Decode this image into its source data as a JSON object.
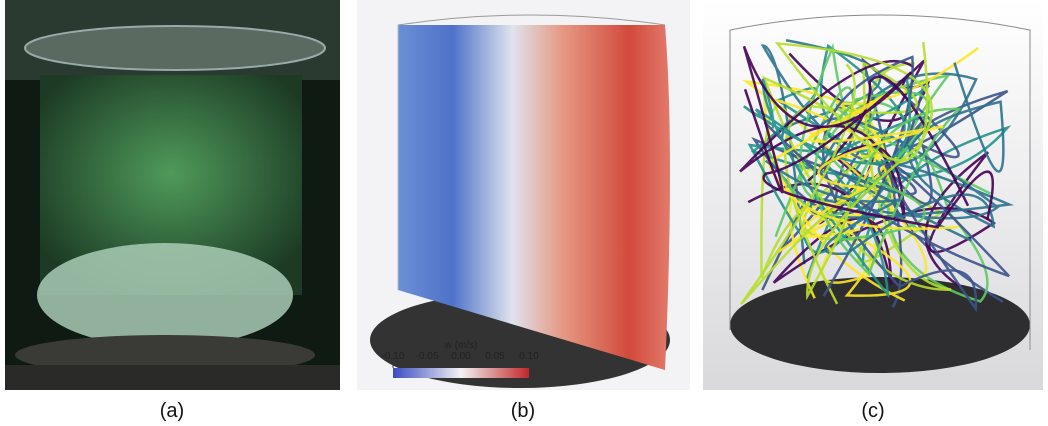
{
  "panels": [
    {
      "label": "(a)"
    },
    {
      "label": "(b)"
    },
    {
      "label": "(c)"
    }
  ],
  "colorbar": {
    "title": "w (m/s)",
    "lim": [
      -0.1,
      0.1
    ],
    "ticks": [
      {
        "value": -0.1,
        "label": "-0.10"
      },
      -0.05,
      {
        "value": 0,
        "label": "0.00"
      },
      0.05,
      {
        "value": 0.1,
        "label": "0.10"
      }
    ]
  }
}
